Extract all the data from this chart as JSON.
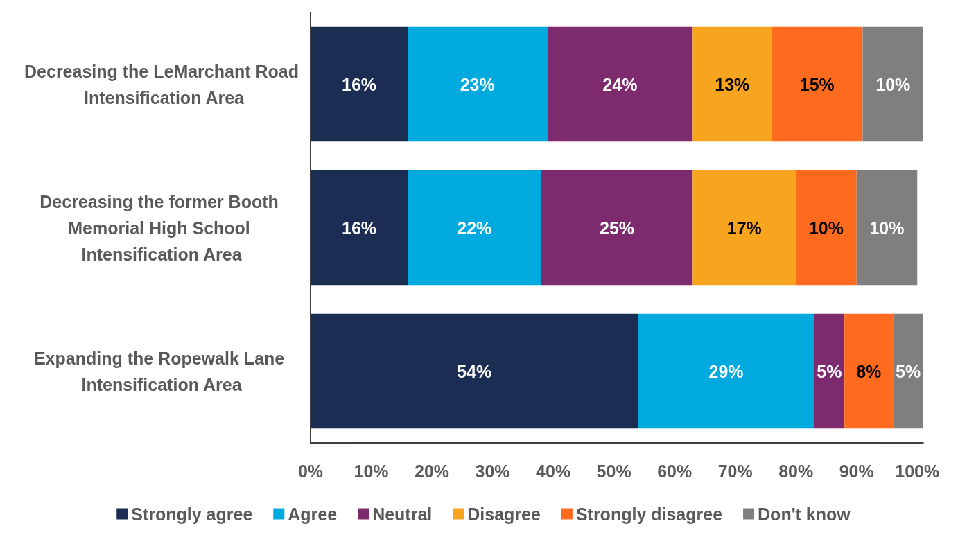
{
  "chart_data": {
    "type": "bar",
    "orientation": "horizontal",
    "stacked": true,
    "categories": [
      "Decreasing the LeMarchant Road Intensification Area",
      "Decreasing the former Booth Memorial High School Intensification Area",
      "Expanding the Ropewalk Lane Intensification Area"
    ],
    "series": [
      {
        "name": "Strongly agree",
        "color": "#1b2d52",
        "values": [
          16,
          16,
          54
        ],
        "value_labels": [
          "16%",
          "16%",
          "54%"
        ]
      },
      {
        "name": "Agree",
        "color": "#00a9de",
        "values": [
          23,
          22,
          29
        ],
        "value_labels": [
          "23%",
          "22%",
          "29%"
        ]
      },
      {
        "name": "Neutral",
        "color": "#7d2a6e",
        "values": [
          24,
          25,
          5
        ],
        "value_labels": [
          "24%",
          "25%",
          "5%"
        ]
      },
      {
        "name": "Disagree",
        "color": "#f7a51e",
        "values": [
          13,
          17,
          0
        ],
        "value_labels": [
          "13%",
          "17%",
          null
        ]
      },
      {
        "name": "Strongly disagree",
        "color": "#fe6a1e",
        "values": [
          15,
          10,
          8
        ],
        "value_labels": [
          "15%",
          "10%",
          "8%"
        ]
      },
      {
        "name": "Don't know",
        "color": "#7f7f7f",
        "values": [
          10,
          10,
          5
        ],
        "value_labels": [
          "10%",
          "10%",
          "5%"
        ]
      }
    ],
    "xlim": [
      0,
      101
    ],
    "xticks": [
      {
        "value": 0,
        "label": "0%"
      },
      {
        "value": 10,
        "label": "10%"
      },
      {
        "value": 20,
        "label": "20%"
      },
      {
        "value": 30,
        "label": "30%"
      },
      {
        "value": 40,
        "label": "40%"
      },
      {
        "value": 50,
        "label": "50%"
      },
      {
        "value": 60,
        "label": "60%"
      },
      {
        "value": 70,
        "label": "70%"
      },
      {
        "value": 80,
        "label": "80%"
      },
      {
        "value": 90,
        "label": "90%"
      },
      {
        "value": 100,
        "label": "100%"
      }
    ],
    "grid": false,
    "legend": "bottom"
  }
}
